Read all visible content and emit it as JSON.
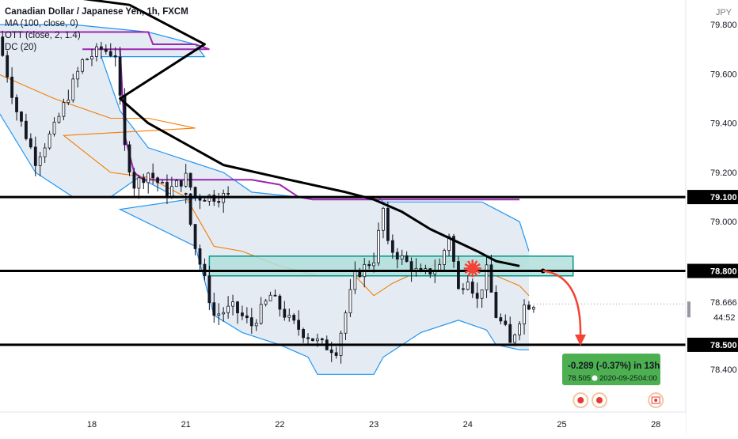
{
  "legend": {
    "title": "Canadian Dollar / Japanese Yen, 1h, FXCM",
    "ma": "MA (100, close, 0)",
    "ott": "OTT (close, 2, 1.4)",
    "dc": "DC (20)"
  },
  "currency": "JPY",
  "colors": {
    "candle": "#131722",
    "ma": "#000000",
    "ott": "#9c27b0",
    "dc_band": "#2196f3",
    "dc_mid": "#f57c00",
    "dc_fill": "#dbe4ef",
    "zone_fill": "#b2dfdb",
    "zone_border": "#009688",
    "arrow": "#f44336",
    "box_fill": "#4caf50"
  },
  "chart_data": {
    "type": "candlestick",
    "ylim": [
      78.23,
      79.9
    ],
    "y_ticks": [
      "79.800",
      "79.600",
      "79.400",
      "79.200",
      "79.000",
      "78.400"
    ],
    "x_ticks": [
      {
        "label": "18",
        "day": 18
      },
      {
        "label": "21",
        "day": 21
      },
      {
        "label": "22",
        "day": 22
      },
      {
        "label": "23",
        "day": 23
      },
      {
        "label": "24",
        "day": 24
      },
      {
        "label": "25",
        "day": 25
      },
      {
        "label": "28",
        "day": 28
      }
    ],
    "horizontal_levels": [
      {
        "value": 79.1,
        "label": "79.100"
      },
      {
        "value": 78.8,
        "label": "78.800"
      },
      {
        "value": 78.5,
        "label": "78.500"
      }
    ],
    "last_price": {
      "value": 78.666,
      "label": "78.666",
      "countdown": "44:52"
    },
    "zone": {
      "from_day": 21.25,
      "to_day": 25.12,
      "low": 78.78,
      "high": 78.86
    },
    "close_keypoints": [
      [
        17.0,
        79.75
      ],
      [
        17.2,
        79.45
      ],
      [
        17.4,
        79.25
      ],
      [
        17.6,
        79.38
      ],
      [
        17.9,
        79.65
      ],
      [
        18.1,
        79.7
      ],
      [
        18.25,
        79.68
      ],
      [
        18.35,
        79.3
      ],
      [
        18.45,
        79.15
      ],
      [
        18.6,
        79.2
      ],
      [
        18.8,
        79.12
      ],
      [
        19.0,
        79.18
      ],
      [
        19.1,
        79.1
      ],
      [
        21.0,
        79.12
      ],
      [
        21.1,
        78.9
      ],
      [
        21.3,
        78.62
      ],
      [
        21.5,
        78.65
      ],
      [
        21.7,
        78.58
      ],
      [
        21.9,
        78.7
      ],
      [
        22.1,
        78.6
      ],
      [
        22.25,
        78.55
      ],
      [
        22.45,
        78.5
      ],
      [
        22.6,
        78.48
      ],
      [
        22.8,
        78.78
      ],
      [
        23.0,
        78.85
      ],
      [
        23.1,
        79.05
      ],
      [
        23.15,
        78.9
      ],
      [
        23.3,
        78.85
      ],
      [
        23.5,
        78.78
      ],
      [
        23.7,
        78.82
      ],
      [
        23.8,
        78.95
      ],
      [
        23.9,
        78.72
      ],
      [
        24.0,
        78.78
      ],
      [
        24.1,
        78.68
      ],
      [
        24.2,
        78.8
      ],
      [
        24.3,
        78.62
      ],
      [
        24.4,
        78.56
      ],
      [
        24.45,
        78.5
      ],
      [
        24.6,
        78.66
      ],
      [
        24.7,
        78.67
      ]
    ],
    "ma_keypoints": [
      [
        17.0,
        79.95
      ],
      [
        18.4,
        79.88
      ],
      [
        19.2,
        79.72
      ],
      [
        20.3,
        79.5
      ],
      [
        20.6,
        79.4
      ],
      [
        21.4,
        79.23
      ],
      [
        22.1,
        79.17
      ],
      [
        22.7,
        79.12
      ],
      [
        23.0,
        79.09
      ],
      [
        23.3,
        79.04
      ],
      [
        23.6,
        78.97
      ],
      [
        24.1,
        78.88
      ],
      [
        24.3,
        78.84
      ],
      [
        24.55,
        78.82
      ]
    ],
    "ott_keypoints": [
      [
        17.0,
        79.77
      ],
      [
        17.8,
        79.77
      ],
      [
        18.6,
        79.77
      ],
      [
        18.65,
        79.72
      ],
      [
        19.1,
        79.72
      ],
      [
        19.25,
        79.7
      ],
      [
        19.9,
        79.7
      ],
      [
        20.3,
        79.7
      ],
      [
        20.35,
        79.35
      ],
      [
        20.45,
        79.2
      ],
      [
        20.55,
        79.17
      ],
      [
        20.9,
        79.17
      ],
      [
        21.7,
        79.17
      ],
      [
        22.0,
        79.15
      ],
      [
        22.2,
        79.1
      ],
      [
        22.35,
        79.09
      ],
      [
        22.9,
        79.09
      ],
      [
        23.5,
        79.09
      ],
      [
        24.55,
        79.09
      ]
    ],
    "dc_upper_keypoints": [
      [
        17.0,
        79.8
      ],
      [
        17.8,
        79.8
      ],
      [
        18.6,
        79.77
      ],
      [
        19.1,
        79.72
      ],
      [
        19.2,
        79.67
      ],
      [
        20.1,
        79.67
      ],
      [
        20.3,
        79.45
      ],
      [
        20.6,
        79.3
      ],
      [
        21.0,
        79.25
      ],
      [
        21.4,
        79.2
      ],
      [
        21.7,
        79.12
      ],
      [
        22.2,
        79.1
      ],
      [
        22.6,
        79.1
      ],
      [
        22.9,
        79.1
      ],
      [
        23.05,
        79.1
      ],
      [
        23.1,
        79.08
      ],
      [
        23.6,
        79.08
      ],
      [
        23.9,
        79.08
      ],
      [
        24.15,
        79.08
      ],
      [
        24.3,
        79.05
      ],
      [
        24.55,
        79.0
      ],
      [
        24.65,
        78.88
      ]
    ],
    "dc_lower_keypoints": [
      [
        17.0,
        79.45
      ],
      [
        17.4,
        79.2
      ],
      [
        17.8,
        79.1
      ],
      [
        18.2,
        79.1
      ],
      [
        18.5,
        79.18
      ],
      [
        18.9,
        79.1
      ],
      [
        19.2,
        79.1
      ],
      [
        20.3,
        79.05
      ],
      [
        21.1,
        78.9
      ],
      [
        21.3,
        78.62
      ],
      [
        21.6,
        78.55
      ],
      [
        22.0,
        78.5
      ],
      [
        22.3,
        78.45
      ],
      [
        22.4,
        78.38
      ],
      [
        23.0,
        78.38
      ],
      [
        23.1,
        78.45
      ],
      [
        23.5,
        78.55
      ],
      [
        23.9,
        78.6
      ],
      [
        24.2,
        78.56
      ],
      [
        24.3,
        78.5
      ],
      [
        24.55,
        78.48
      ],
      [
        24.65,
        78.48
      ]
    ],
    "dc_mid_keypoints": [
      [
        17.0,
        79.6
      ],
      [
        17.6,
        79.5
      ],
      [
        18.2,
        79.42
      ],
      [
        18.6,
        79.42
      ],
      [
        19.1,
        79.38
      ],
      [
        19.7,
        79.35
      ],
      [
        20.2,
        79.2
      ],
      [
        20.6,
        79.18
      ],
      [
        21.0,
        79.1
      ],
      [
        21.3,
        78.9
      ],
      [
        21.6,
        78.88
      ],
      [
        22.0,
        78.82
      ],
      [
        22.4,
        78.78
      ],
      [
        22.8,
        78.78
      ],
      [
        23.0,
        78.7
      ],
      [
        23.2,
        78.75
      ],
      [
        23.6,
        78.82
      ],
      [
        23.9,
        78.85
      ],
      [
        24.1,
        78.82
      ],
      [
        24.3,
        78.78
      ],
      [
        24.55,
        78.74
      ],
      [
        24.65,
        78.7
      ]
    ],
    "projection": {
      "target_price": "78.505",
      "change": "-0.289 (-0.37%) in 13h",
      "date": "2020-09-25",
      "time": "04:00"
    },
    "event_markers": [
      {
        "day": 25.2,
        "type": "circle"
      },
      {
        "day": 25.4,
        "type": "circle"
      },
      {
        "day": 26.0,
        "type": "flag"
      },
      {
        "day": 26.57,
        "type": "circle"
      }
    ]
  }
}
